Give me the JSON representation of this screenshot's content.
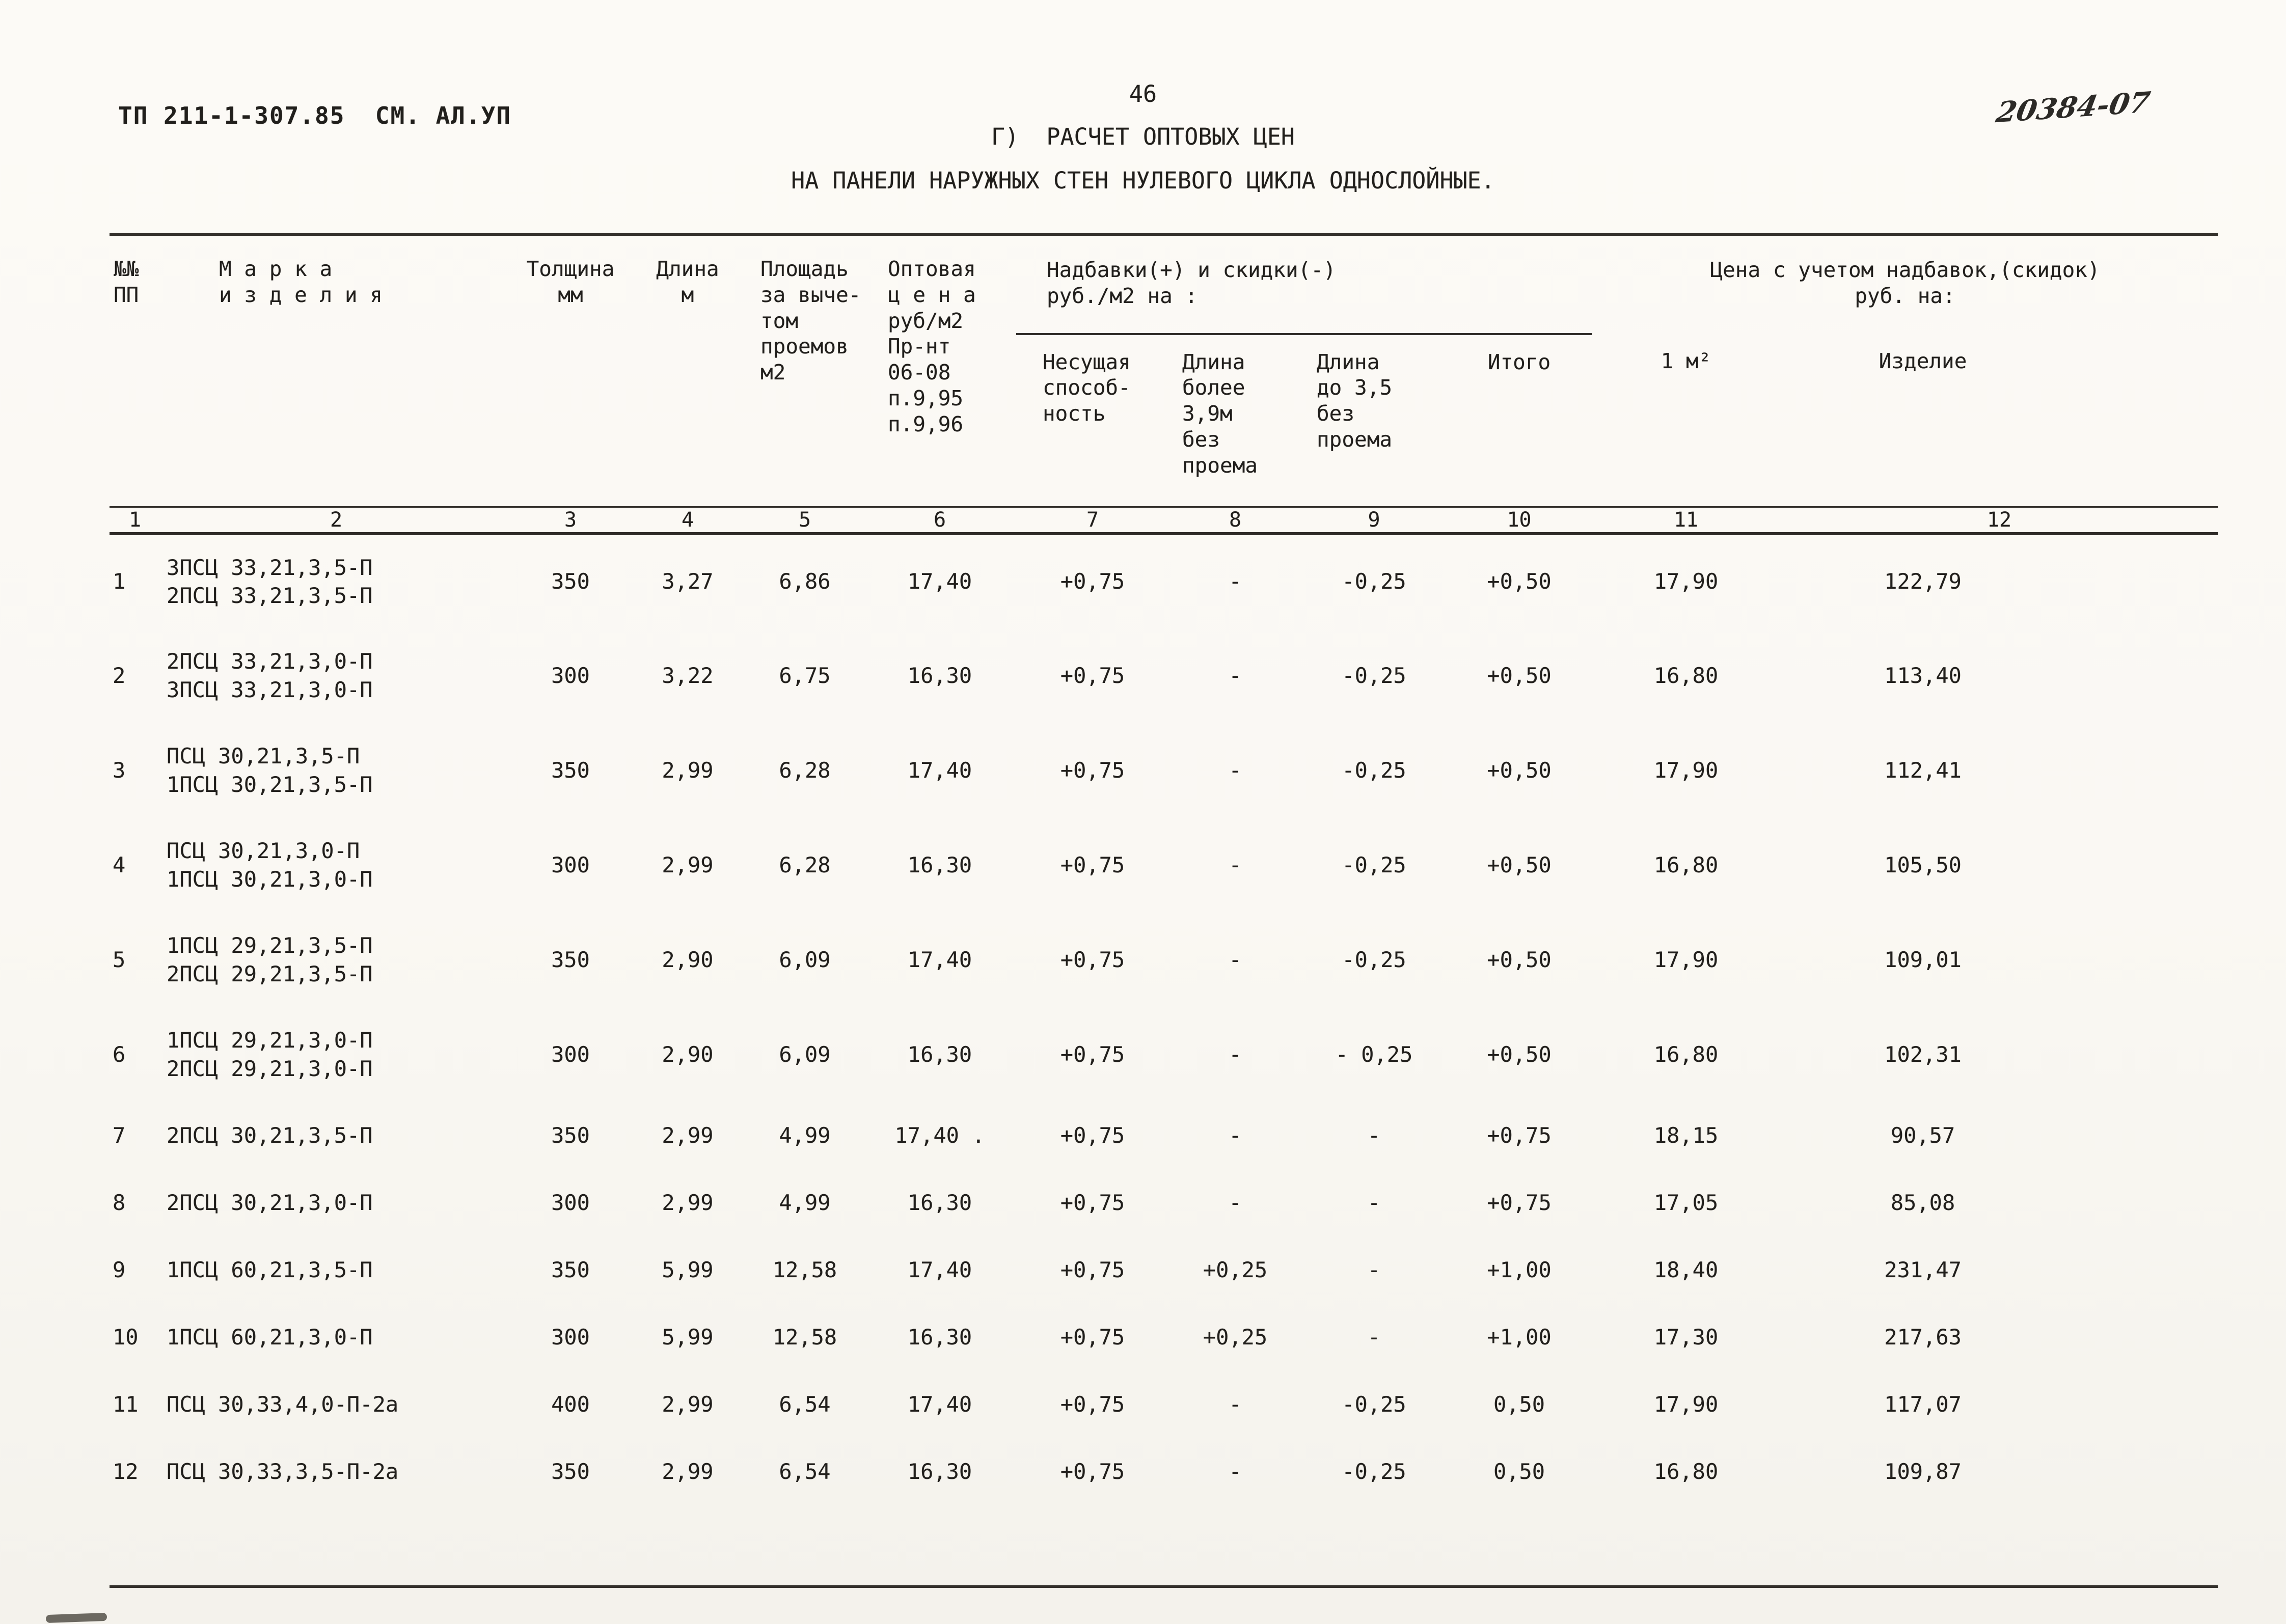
{
  "page": {
    "doc_ref": "ТП 211-1-307.85  СМ. АЛ.УП",
    "page_number": "46",
    "title_line1": "Г)  РАСЧЕТ ОПТОВЫХ ЦЕН",
    "title_line2": "НА ПАНЕЛИ НАРУЖНЫХ СТЕН НУЛЕВОГО ЦИКЛА ОДНОСЛОЙНЫЕ.",
    "handwritten_ref": "20384-07"
  },
  "table": {
    "headers": {
      "col1": "№№\nПП",
      "col2": "М а р к а\nи з д е л и я",
      "col3": "Толщина\nмм",
      "col4": "Длина\nм",
      "col5": "Площадь\nза выче-\nтом\nпроемов\nм2",
      "col6": "Оптовая\nц е н а\nруб/м2\nПр-нт\n06-08\nп.9,95\nп.9,96",
      "group_nadbavki": "Надбавки(+) и скидки(-)\n руб./м2  на :",
      "col7": "Несущая\nспособ-\nность",
      "col8": "Длина\nболее\n3,9м\nбез\nпроема",
      "col9": "Длина\nдо 3,5\nбез\nпроема",
      "col10": "Итого",
      "group_cena": "Цена с учетом надбавок,(скидок)\nруб. на:",
      "col11": "1 м²",
      "col12": "Изделие"
    },
    "column_numbers": [
      "1",
      "2",
      "3",
      "4",
      "5",
      "6",
      "7",
      "8",
      "9",
      "10",
      "11",
      "12"
    ],
    "rows": [
      {
        "num": "1",
        "marka": "3ПСЦ 33,21,3,5-П\n2ПСЦ 33,21,3,5-П",
        "c3": "350",
        "c4": "3,27",
        "c5": "6,86",
        "c6": "17,40",
        "c7": "+0,75",
        "c8": "-",
        "c9": "-0,25",
        "c10": "+0,50",
        "c11": "17,90",
        "c12": "122,79"
      },
      {
        "num": "2",
        "marka": "2ПСЦ 33,21,3,0-П\n3ПСЦ 33,21,3,0-П",
        "c3": "300",
        "c4": "3,22",
        "c5": "6,75",
        "c6": "16,30",
        "c7": "+0,75",
        "c8": "-",
        "c9": "-0,25",
        "c10": "+0,50",
        "c11": "16,80",
        "c12": "113,40"
      },
      {
        "num": "3",
        "marka": "ПСЦ 30,21,3,5-П\n1ПСЦ 30,21,3,5-П",
        "c3": "350",
        "c4": "2,99",
        "c5": "6,28",
        "c6": "17,40",
        "c7": "+0,75",
        "c8": "-",
        "c9": "-0,25",
        "c10": "+0,50",
        "c11": "17,90",
        "c12": "112,41"
      },
      {
        "num": "4",
        "marka": "ПСЦ 30,21,3,0-П\n1ПСЦ 30,21,3,0-П",
        "c3": "300",
        "c4": "2,99",
        "c5": "6,28",
        "c6": "16,30",
        "c7": "+0,75",
        "c8": "-",
        "c9": "-0,25",
        "c10": "+0,50",
        "c11": "16,80",
        "c12": "105,50"
      },
      {
        "num": "5",
        "marka": "1ПСЦ 29,21,3,5-П\n2ПСЦ 29,21,3,5-П",
        "c3": "350",
        "c4": "2,90",
        "c5": "6,09",
        "c6": "17,40",
        "c7": "+0,75",
        "c8": "-",
        "c9": "-0,25",
        "c10": "+0,50",
        "c11": "17,90",
        "c12": "109,01"
      },
      {
        "num": "6",
        "marka": "1ПСЦ 29,21,3,0-П\n2ПСЦ  29,21,3,0-П",
        "c3": "300",
        "c4": "2,90",
        "c5": "6,09",
        "c6": "16,30",
        "c7": "+0,75",
        "c8": "-",
        "c9": "- 0,25",
        "c10": "+0,50",
        "c11": "16,80",
        "c12": "102,31"
      },
      {
        "num": "7",
        "marka": "2ПСЦ 30,21,3,5-П",
        "c3": "350",
        "c4": "2,99",
        "c5": "4,99",
        "c6": "17,40 .",
        "c7": "+0,75",
        "c8": "-",
        "c9": "-",
        "c10": "+0,75",
        "c11": "18,15",
        "c12": "90,57"
      },
      {
        "num": "8",
        "marka": "2ПСЦ 30,21,3,0-П",
        "c3": "300",
        "c4": "2,99",
        "c5": "4,99",
        "c6": "16,30",
        "c7": "+0,75",
        "c8": "-",
        "c9": "-",
        "c10": "+0,75",
        "c11": "17,05",
        "c12": "85,08"
      },
      {
        "num": "9",
        "marka": "1ПСЦ 60,21,3,5-П",
        "c3": "350",
        "c4": "5,99",
        "c5": "12,58",
        "c6": "17,40",
        "c7": "+0,75",
        "c8": "+0,25",
        "c9": "-",
        "c10": "+1,00",
        "c11": "18,40",
        "c12": "231,47"
      },
      {
        "num": "10",
        "marka": "1ПСЦ 60,21,3,0-П",
        "c3": "300",
        "c4": "5,99",
        "c5": "12,58",
        "c6": "16,30",
        "c7": "+0,75",
        "c8": "+0,25",
        "c9": "-",
        "c10": "+1,00",
        "c11": "17,30",
        "c12": "217,63"
      },
      {
        "num": "11",
        "marka": "ПСЦ 30,33,4,0-П-2а",
        "c3": "400",
        "c4": "2,99",
        "c5": "6,54",
        "c6": "17,40",
        "c7": "+0,75",
        "c8": "-",
        "c9": "-0,25",
        "c10": "0,50",
        "c11": "17,90",
        "c12": "117,07"
      },
      {
        "num": "12",
        "marka": "ПСЦ 30,33,3,5-П-2а",
        "c3": "350",
        "c4": "2,99",
        "c5": "6,54",
        "c6": "16,30",
        "c7": "+0,75",
        "c8": "-",
        "c9": "-0,25",
        "c10": "0,50",
        "c11": "16,80",
        "c12": "109,87"
      }
    ]
  }
}
